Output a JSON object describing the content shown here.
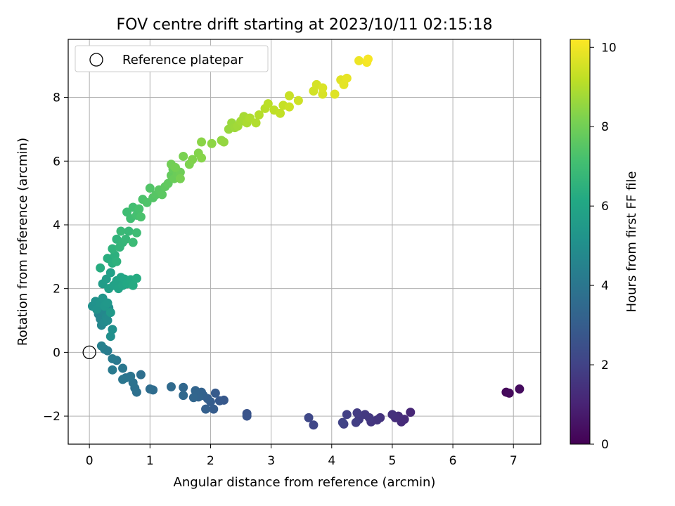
{
  "chart_data": {
    "type": "scatter",
    "title": "FOV centre drift starting at 2023/10/11 02:15:18",
    "xlabel": "Angular distance from reference (arcmin)",
    "ylabel": "Rotation from reference (arcmin)",
    "xlim": [
      -0.35,
      7.45
    ],
    "ylim": [
      -2.88,
      9.82
    ],
    "xticks": [
      0,
      1,
      2,
      3,
      4,
      5,
      6,
      7
    ],
    "yticks": [
      -2,
      0,
      2,
      4,
      6,
      8
    ],
    "grid": true,
    "legend": {
      "position": "top-left",
      "entries": [
        "Reference platepar"
      ]
    },
    "reference_point": {
      "x": 0,
      "y": 0,
      "label": "Reference platepar"
    },
    "colorbar": {
      "label": "Hours from first FF file",
      "range": [
        0,
        10.2
      ],
      "ticks": [
        0,
        2,
        4,
        6,
        8,
        10
      ],
      "colormap": "viridis"
    },
    "series": [
      {
        "points": [
          [
            6.88,
            -1.25,
            0.2
          ],
          [
            6.93,
            -1.28,
            0.25
          ],
          [
            7.1,
            -1.15,
            0.3
          ],
          [
            5.3,
            -1.88,
            1.1
          ],
          [
            5.2,
            -2.1,
            1.2
          ],
          [
            5.15,
            -2.18,
            1.25
          ],
          [
            5.1,
            -2.0,
            1.3
          ],
          [
            5.05,
            -2.05,
            1.35
          ],
          [
            5.0,
            -1.95,
            1.4
          ],
          [
            4.8,
            -2.05,
            1.5
          ],
          [
            4.75,
            -2.12,
            1.55
          ],
          [
            4.65,
            -2.18,
            1.6
          ],
          [
            4.62,
            -2.05,
            1.65
          ],
          [
            4.55,
            -1.95,
            1.7
          ],
          [
            4.45,
            -2.1,
            1.75
          ],
          [
            4.42,
            -1.9,
            1.8
          ],
          [
            4.4,
            -2.2,
            1.85
          ],
          [
            4.25,
            -1.95,
            1.9
          ],
          [
            4.2,
            -2.25,
            1.95
          ],
          [
            4.18,
            -2.2,
            2.0
          ],
          [
            3.7,
            -2.28,
            2.1
          ],
          [
            3.62,
            -2.05,
            2.2
          ],
          [
            2.6,
            -1.92,
            2.6
          ],
          [
            2.6,
            -2.0,
            2.65
          ],
          [
            2.22,
            -1.5,
            2.8
          ],
          [
            2.15,
            -1.52,
            2.85
          ],
          [
            2.08,
            -1.28,
            2.9
          ],
          [
            2.05,
            -1.78,
            2.95
          ],
          [
            2.0,
            -1.55,
            3.0
          ],
          [
            1.95,
            -1.45,
            3.05
          ],
          [
            1.92,
            -1.78,
            3.1
          ],
          [
            1.88,
            -1.35,
            3.15
          ],
          [
            1.85,
            -1.25,
            3.2
          ],
          [
            1.8,
            -1.4,
            3.25
          ],
          [
            1.75,
            -1.2,
            3.3
          ],
          [
            1.72,
            -1.42,
            3.35
          ],
          [
            1.55,
            -1.1,
            3.4
          ],
          [
            1.55,
            -1.35,
            3.45
          ],
          [
            1.35,
            -1.08,
            3.5
          ],
          [
            1.05,
            -1.18,
            3.6
          ],
          [
            1.0,
            -1.15,
            3.65
          ],
          [
            0.85,
            -0.7,
            3.7
          ],
          [
            0.78,
            -1.25,
            3.75
          ],
          [
            0.75,
            -1.12,
            3.8
          ],
          [
            0.72,
            -0.95,
            3.85
          ],
          [
            0.68,
            -0.75,
            3.9
          ],
          [
            0.6,
            -0.8,
            3.95
          ],
          [
            0.55,
            -0.85,
            4.0
          ],
          [
            0.55,
            -0.5,
            4.05
          ],
          [
            0.45,
            -0.25,
            4.1
          ],
          [
            0.38,
            -0.55,
            4.15
          ],
          [
            0.38,
            -0.2,
            4.2
          ],
          [
            0.3,
            0.05,
            4.25
          ],
          [
            0.25,
            0.1,
            4.3
          ],
          [
            0.2,
            0.2,
            4.4
          ],
          [
            0.15,
            1.2,
            4.6
          ],
          [
            0.18,
            1.05,
            4.65
          ],
          [
            0.2,
            0.85,
            4.7
          ],
          [
            0.22,
            1.3,
            4.75
          ],
          [
            0.25,
            0.95,
            4.8
          ],
          [
            0.28,
            1.1,
            4.85
          ],
          [
            0.3,
            1.0,
            4.9
          ],
          [
            0.32,
            1.4,
            4.95
          ],
          [
            0.35,
            0.5,
            5.0
          ],
          [
            0.38,
            0.72,
            5.05
          ],
          [
            0.05,
            1.45,
            5.1
          ],
          [
            0.1,
            1.6,
            5.15
          ],
          [
            0.12,
            1.35,
            5.2
          ],
          [
            0.18,
            1.55,
            5.25
          ],
          [
            0.22,
            1.7,
            5.3
          ],
          [
            0.25,
            1.45,
            5.35
          ],
          [
            0.3,
            1.55,
            5.4
          ],
          [
            0.35,
            1.25,
            5.45
          ],
          [
            0.22,
            2.15,
            5.6
          ],
          [
            0.28,
            2.3,
            5.65
          ],
          [
            0.32,
            2.0,
            5.7
          ],
          [
            0.35,
            2.5,
            5.75
          ],
          [
            0.4,
            2.1,
            5.8
          ],
          [
            0.45,
            2.25,
            5.85
          ],
          [
            0.48,
            2.0,
            5.9
          ],
          [
            0.52,
            2.35,
            5.95
          ],
          [
            0.55,
            2.1,
            6.0
          ],
          [
            0.58,
            2.3,
            6.05
          ],
          [
            0.62,
            2.15,
            6.1
          ],
          [
            0.68,
            2.28,
            6.15
          ],
          [
            0.72,
            2.1,
            6.2
          ],
          [
            0.78,
            2.32,
            6.25
          ],
          [
            0.18,
            2.65,
            6.3
          ],
          [
            0.3,
            2.95,
            6.35
          ],
          [
            0.38,
            2.8,
            6.4
          ],
          [
            0.42,
            3.05,
            6.45
          ],
          [
            0.45,
            2.85,
            6.5
          ],
          [
            0.38,
            3.25,
            6.55
          ],
          [
            0.45,
            3.55,
            6.6
          ],
          [
            0.5,
            3.3,
            6.65
          ],
          [
            0.55,
            3.45,
            6.7
          ],
          [
            0.6,
            3.55,
            6.75
          ],
          [
            0.65,
            3.8,
            6.8
          ],
          [
            0.52,
            3.8,
            6.85
          ],
          [
            0.72,
            3.45,
            6.9
          ],
          [
            0.78,
            3.75,
            6.95
          ],
          [
            0.62,
            4.4,
            7.0
          ],
          [
            0.68,
            4.2,
            7.05
          ],
          [
            0.72,
            4.55,
            7.1
          ],
          [
            0.78,
            4.3,
            7.15
          ],
          [
            0.82,
            4.5,
            7.2
          ],
          [
            0.85,
            4.25,
            7.25
          ],
          [
            0.88,
            4.8,
            7.3
          ],
          [
            0.95,
            4.7,
            7.35
          ],
          [
            1.0,
            5.15,
            7.4
          ],
          [
            1.05,
            4.85,
            7.45
          ],
          [
            1.1,
            4.95,
            7.5
          ],
          [
            1.15,
            5.1,
            7.55
          ],
          [
            1.2,
            4.95,
            7.6
          ],
          [
            1.25,
            5.2,
            7.65
          ],
          [
            1.3,
            5.3,
            7.7
          ],
          [
            1.35,
            5.55,
            7.75
          ],
          [
            1.38,
            5.75,
            7.8
          ],
          [
            1.4,
            5.45,
            7.85
          ],
          [
            1.45,
            5.6,
            7.9
          ],
          [
            1.5,
            5.65,
            7.95
          ],
          [
            1.35,
            5.9,
            8.0
          ],
          [
            1.42,
            5.8,
            8.05
          ],
          [
            1.5,
            5.45,
            8.1
          ],
          [
            1.55,
            6.15,
            8.15
          ],
          [
            1.65,
            5.9,
            8.2
          ],
          [
            1.7,
            6.05,
            8.25
          ],
          [
            1.8,
            6.25,
            8.3
          ],
          [
            1.85,
            6.1,
            8.35
          ],
          [
            1.85,
            6.6,
            8.4
          ],
          [
            2.02,
            6.55,
            8.45
          ],
          [
            2.18,
            6.65,
            8.5
          ],
          [
            2.22,
            6.6,
            8.55
          ],
          [
            2.3,
            7.0,
            8.6
          ],
          [
            2.35,
            7.2,
            8.65
          ],
          [
            2.4,
            7.05,
            8.7
          ],
          [
            2.45,
            7.1,
            8.75
          ],
          [
            2.5,
            7.25,
            8.8
          ],
          [
            2.55,
            7.4,
            8.85
          ],
          [
            2.6,
            7.2,
            8.9
          ],
          [
            2.65,
            7.35,
            8.95
          ],
          [
            2.75,
            7.2,
            9.0
          ],
          [
            2.8,
            7.45,
            9.05
          ],
          [
            2.9,
            7.65,
            9.1
          ],
          [
            2.95,
            7.8,
            9.15
          ],
          [
            3.05,
            7.6,
            9.2
          ],
          [
            3.15,
            7.5,
            9.25
          ],
          [
            3.2,
            7.75,
            9.3
          ],
          [
            3.3,
            8.05,
            9.35
          ],
          [
            3.3,
            7.7,
            9.4
          ],
          [
            3.45,
            7.9,
            9.45
          ],
          [
            3.7,
            8.2,
            9.5
          ],
          [
            3.75,
            8.4,
            9.55
          ],
          [
            3.85,
            8.1,
            9.6
          ],
          [
            3.85,
            8.3,
            9.65
          ],
          [
            4.05,
            8.1,
            9.7
          ],
          [
            4.15,
            8.55,
            9.75
          ],
          [
            4.2,
            8.4,
            9.8
          ],
          [
            4.25,
            8.6,
            9.85
          ],
          [
            4.45,
            9.15,
            9.95
          ],
          [
            4.58,
            9.1,
            10.05
          ],
          [
            4.6,
            9.2,
            10.1
          ]
        ]
      }
    ]
  }
}
